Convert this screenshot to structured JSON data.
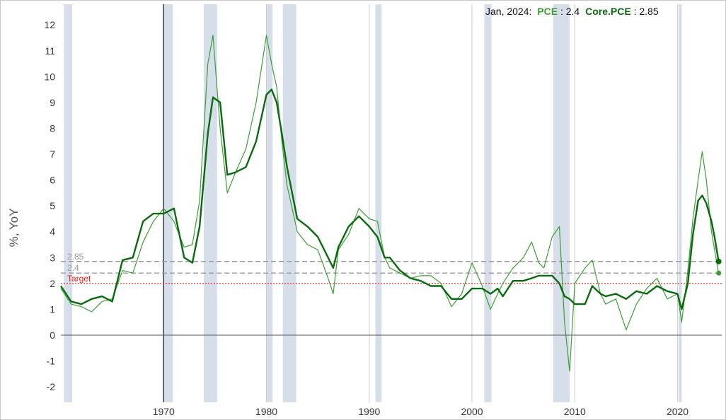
{
  "header": {
    "date": "Jan, 2024:",
    "pce_label": "PCE",
    "pce_value": ": 2.4",
    "core_label": "Core.PCE",
    "core_value": ": 2.85"
  },
  "colors": {
    "pce": "#3a9e35",
    "core": "#0b6a10",
    "recession": "#d6dee9",
    "target": "#e41b17",
    "dash": "#9a9a9a",
    "zero": "#555555"
  },
  "chart_data": {
    "type": "line",
    "title": "",
    "xlabel": "",
    "ylabel": "%, YoY",
    "xlim": [
      1960.0,
      2024.3
    ],
    "ylim": [
      -2.6,
      12.8
    ],
    "y_ticks": [
      -2,
      -1,
      0,
      1,
      2,
      3,
      4,
      5,
      6,
      7,
      8,
      9,
      10,
      11,
      12
    ],
    "x_ticks": [
      1970,
      1980,
      1990,
      2000,
      2010,
      2020
    ],
    "reference_lines": [
      {
        "label": "2.85",
        "y": 2.85,
        "style": "dashed"
      },
      {
        "label": "2.4",
        "y": 2.4,
        "style": "dashed"
      },
      {
        "label": "Target",
        "y": 2.0,
        "style": "dotted"
      }
    ],
    "recessions": [
      [
        1960.3,
        1961.1
      ],
      [
        1969.9,
        1970.9
      ],
      [
        1973.9,
        1975.2
      ],
      [
        1980.0,
        1980.6
      ],
      [
        1981.6,
        1982.9
      ],
      [
        1990.6,
        1991.2
      ],
      [
        2001.2,
        2001.9
      ],
      [
        2007.9,
        2009.5
      ],
      [
        2020.1,
        2020.4
      ]
    ],
    "vertical_markers": [
      1970.0,
      1980.0,
      1990.0,
      2000.0,
      2010.0,
      2020.0
    ],
    "series": [
      {
        "name": "PCE",
        "x": [
          1960.0,
          1961.0,
          1962.0,
          1963.0,
          1964.0,
          1965.0,
          1966.0,
          1967.0,
          1968.0,
          1969.0,
          1970.0,
          1971.0,
          1972.0,
          1972.8,
          1973.5,
          1974.3,
          1974.8,
          1975.5,
          1976.2,
          1977.0,
          1978.0,
          1979.0,
          1980.0,
          1980.5,
          1981.0,
          1981.5,
          1982.0,
          1983.0,
          1984.0,
          1985.0,
          1986.0,
          1986.5,
          1987.0,
          1988.0,
          1989.0,
          1990.0,
          1990.8,
          1991.5,
          1992.0,
          1993.0,
          1994.0,
          1995.0,
          1996.0,
          1997.0,
          1998.0,
          1999.0,
          2000.0,
          2001.0,
          2001.8,
          2002.5,
          2003.0,
          2004.0,
          2005.0,
          2005.8,
          2006.5,
          2007.0,
          2007.8,
          2008.5,
          2009.0,
          2009.5,
          2010.0,
          2011.0,
          2011.7,
          2012.5,
          2013.0,
          2014.0,
          2015.0,
          2016.0,
          2017.0,
          2018.0,
          2019.0,
          2020.0,
          2020.4,
          2021.0,
          2021.5,
          2022.0,
          2022.4,
          2022.8,
          2023.3,
          2023.6,
          2024.0
        ],
        "values": [
          1.8,
          1.2,
          1.1,
          0.9,
          1.3,
          1.4,
          2.5,
          2.4,
          3.6,
          4.4,
          4.9,
          4.4,
          3.4,
          3.5,
          5.2,
          10.5,
          11.6,
          8.0,
          5.5,
          6.3,
          7.2,
          9.0,
          11.6,
          10.5,
          9.6,
          7.5,
          5.8,
          4.0,
          3.5,
          3.3,
          2.2,
          1.6,
          3.3,
          3.9,
          4.9,
          4.5,
          4.4,
          3.0,
          2.6,
          2.4,
          2.2,
          2.3,
          2.3,
          2.0,
          1.1,
          1.6,
          2.8,
          1.9,
          1.0,
          1.6,
          2.0,
          2.6,
          3.0,
          3.6,
          2.8,
          2.6,
          3.8,
          4.2,
          0.5,
          -1.4,
          2.0,
          2.6,
          2.9,
          1.6,
          1.2,
          1.4,
          0.2,
          1.2,
          1.8,
          2.2,
          1.4,
          1.6,
          0.5,
          2.5,
          4.5,
          6.0,
          7.1,
          6.0,
          4.0,
          3.3,
          2.4
        ]
      },
      {
        "name": "Core.PCE",
        "x": [
          1960.0,
          1961.0,
          1962.0,
          1963.0,
          1964.0,
          1965.0,
          1966.0,
          1967.0,
          1968.0,
          1969.0,
          1970.0,
          1971.0,
          1972.0,
          1972.8,
          1973.5,
          1974.3,
          1974.8,
          1975.5,
          1976.2,
          1977.0,
          1978.0,
          1979.0,
          1980.0,
          1980.5,
          1981.0,
          1981.5,
          1982.0,
          1983.0,
          1984.0,
          1985.0,
          1986.0,
          1986.5,
          1987.0,
          1988.0,
          1989.0,
          1990.0,
          1990.8,
          1991.5,
          1992.0,
          1993.0,
          1994.0,
          1995.0,
          1996.0,
          1997.0,
          1998.0,
          1999.0,
          2000.0,
          2001.0,
          2001.8,
          2002.5,
          2003.0,
          2004.0,
          2005.0,
          2005.8,
          2006.5,
          2007.0,
          2007.8,
          2008.5,
          2009.0,
          2009.5,
          2010.0,
          2011.0,
          2011.7,
          2012.5,
          2013.0,
          2014.0,
          2015.0,
          2016.0,
          2017.0,
          2018.0,
          2019.0,
          2020.0,
          2020.4,
          2021.0,
          2021.5,
          2022.0,
          2022.4,
          2022.8,
          2023.3,
          2023.6,
          2024.0
        ],
        "values": [
          1.9,
          1.3,
          1.2,
          1.4,
          1.5,
          1.3,
          2.9,
          3.0,
          4.4,
          4.7,
          4.7,
          4.9,
          3.0,
          2.8,
          4.2,
          7.8,
          9.2,
          9.0,
          6.2,
          6.3,
          6.5,
          7.5,
          9.3,
          9.5,
          9.0,
          7.8,
          6.5,
          4.5,
          4.2,
          3.8,
          3.0,
          2.6,
          3.4,
          4.2,
          4.6,
          4.2,
          3.8,
          3.0,
          3.0,
          2.5,
          2.2,
          2.1,
          1.9,
          1.9,
          1.4,
          1.4,
          1.8,
          1.8,
          1.6,
          1.8,
          1.5,
          2.1,
          2.1,
          2.2,
          2.3,
          2.3,
          2.3,
          2.0,
          1.5,
          1.4,
          1.2,
          1.2,
          1.9,
          1.6,
          1.5,
          1.6,
          1.4,
          1.7,
          1.6,
          1.9,
          1.7,
          1.6,
          1.0,
          2.0,
          3.9,
          5.2,
          5.4,
          5.1,
          4.4,
          3.8,
          2.85
        ]
      }
    ]
  }
}
